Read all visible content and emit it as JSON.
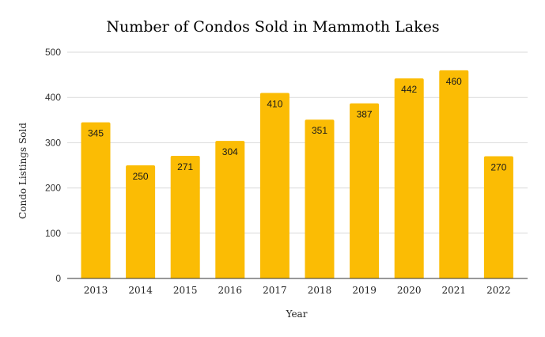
{
  "chart_data": {
    "type": "bar",
    "title": "Number of Condos Sold in Mammoth Lakes",
    "xlabel": "Year",
    "ylabel": "Condo Listings Sold",
    "categories": [
      "2013",
      "2014",
      "2015",
      "2016",
      "2017",
      "2018",
      "2019",
      "2020",
      "2021",
      "2022"
    ],
    "values": [
      345,
      250,
      271,
      304,
      410,
      351,
      387,
      442,
      460,
      270
    ],
    "ylim": [
      0,
      500
    ],
    "yticks": [
      0,
      100,
      200,
      300,
      400,
      500
    ],
    "bar_color": "#fbbc04",
    "grid": true,
    "legend": "none"
  }
}
